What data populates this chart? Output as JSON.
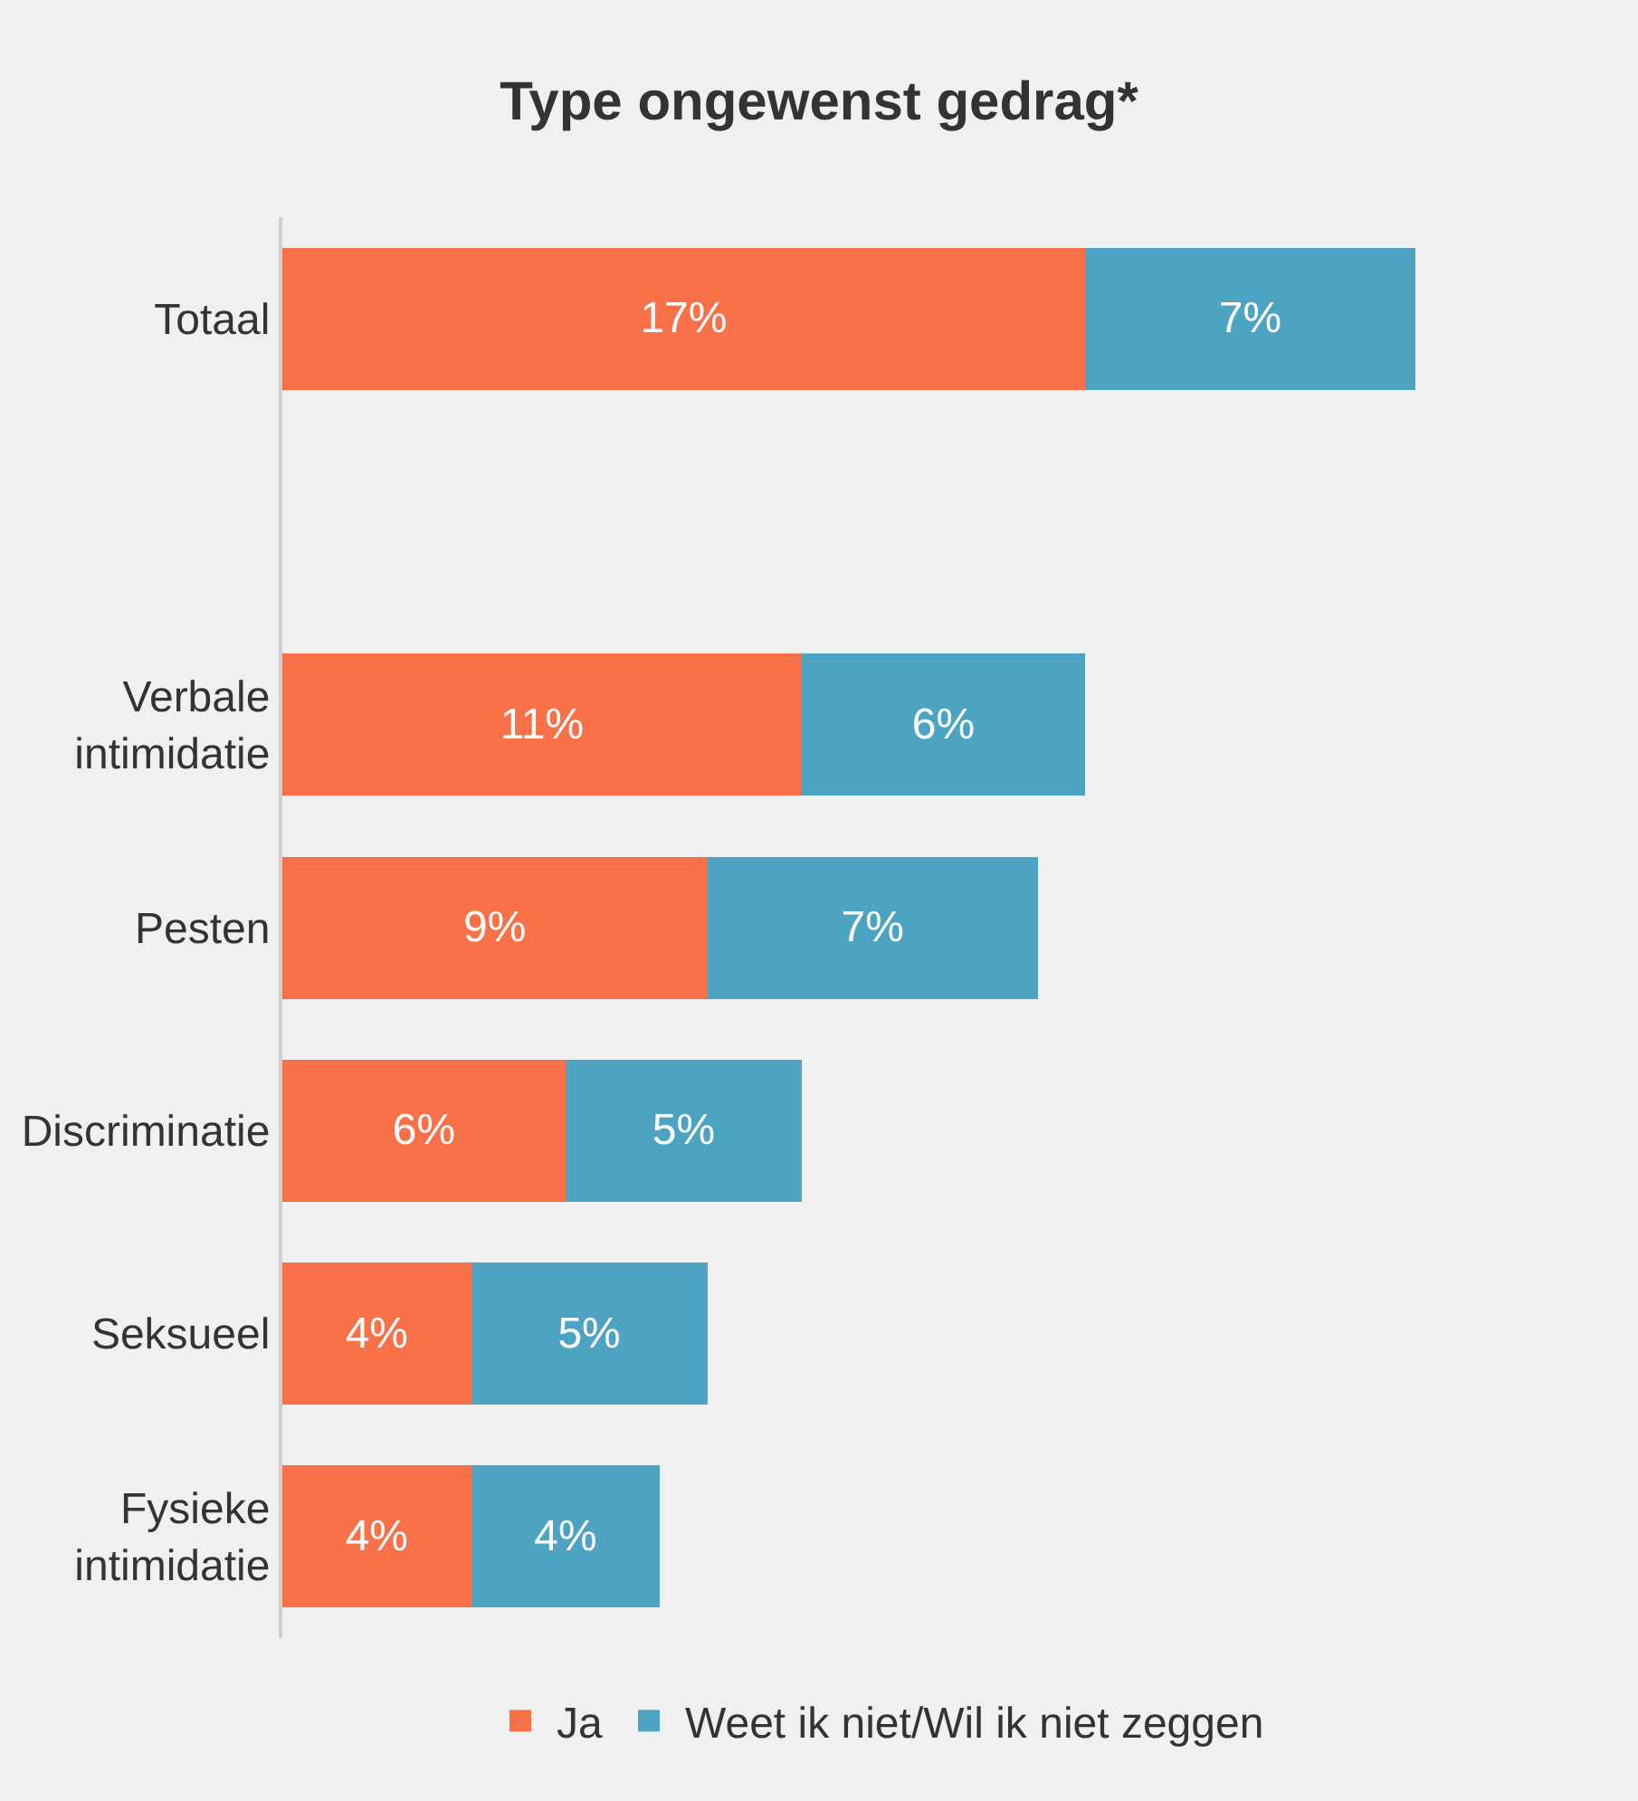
{
  "chart_data": {
    "type": "bar",
    "orientation": "horizontal",
    "stacked": true,
    "title": "Type ongewenst gedrag*",
    "categories": [
      "Totaal",
      null,
      "Verbale intimidatie",
      "Pesten",
      "Discriminatie",
      "Seksueel",
      "Fysieke intimidatie"
    ],
    "series": [
      {
        "name": "Ja",
        "color": "#f97148",
        "values": [
          17,
          null,
          11,
          9,
          6,
          4,
          4
        ],
        "value_labels": [
          "17%",
          null,
          "11%",
          "9%",
          "6%",
          "4%",
          "4%"
        ]
      },
      {
        "name": "Weet ik niet/Wil ik niet zeggen",
        "color": "#4da3c2",
        "values": [
          7,
          null,
          6,
          7,
          5,
          5,
          4
        ],
        "value_labels": [
          "7%",
          null,
          "6%",
          "7%",
          "5%",
          "5%",
          "4%"
        ]
      }
    ],
    "legend": "bottom"
  }
}
